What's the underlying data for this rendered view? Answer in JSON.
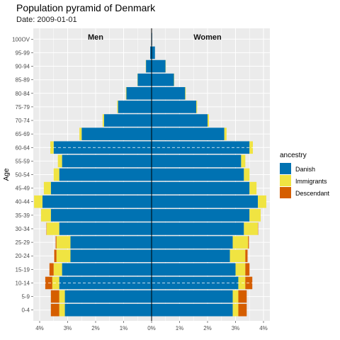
{
  "chart_data": {
    "type": "bar",
    "orientation": "horizontal-pyramid",
    "title": "Population pyramid of Denmark",
    "subtitle": "Date: 2009-01-01",
    "ylabel": "Age",
    "xlabel": "",
    "group_labels": {
      "left": "Men",
      "right": "Women"
    },
    "categories": [
      "0-4",
      "5-9",
      "10-14",
      "15-19",
      "20-24",
      "25-29",
      "30-34",
      "35-39",
      "40-44",
      "45-49",
      "50-54",
      "55-59",
      "60-64",
      "65-69",
      "70-74",
      "75-79",
      "80-84",
      "85-89",
      "90-94",
      "95-99",
      "100OV"
    ],
    "x_ticks": [
      "4%",
      "3%",
      "2%",
      "1%",
      "0%",
      "1%",
      "2%",
      "3%",
      "4%"
    ],
    "xlim": [
      -4,
      4
    ],
    "legend": {
      "title": "ancestry",
      "position": "right"
    },
    "series": [
      {
        "name": "Danish",
        "color": "#0072B2",
        "men": [
          3.1,
          3.1,
          3.3,
          3.2,
          2.9,
          2.9,
          3.3,
          3.6,
          3.9,
          3.6,
          3.3,
          3.2,
          3.5,
          2.5,
          1.7,
          1.2,
          0.9,
          0.5,
          0.2,
          0.05,
          0.01
        ],
        "women": [
          2.9,
          2.9,
          3.1,
          3.0,
          2.8,
          2.9,
          3.3,
          3.5,
          3.8,
          3.5,
          3.3,
          3.2,
          3.5,
          2.6,
          2.0,
          1.6,
          1.2,
          0.8,
          0.5,
          0.12,
          0.02
        ]
      },
      {
        "name": "Immigrants",
        "color": "#F0E442",
        "men": [
          0.2,
          0.2,
          0.25,
          0.3,
          0.5,
          0.5,
          0.45,
          0.35,
          0.3,
          0.25,
          0.2,
          0.15,
          0.12,
          0.08,
          0.05,
          0.03,
          0.02,
          0.01,
          0.01,
          0,
          0
        ],
        "women": [
          0.2,
          0.2,
          0.25,
          0.35,
          0.55,
          0.55,
          0.5,
          0.4,
          0.3,
          0.25,
          0.2,
          0.15,
          0.12,
          0.08,
          0.05,
          0.03,
          0.02,
          0.01,
          0.01,
          0,
          0
        ]
      },
      {
        "name": "Descendant",
        "color": "#D55E00",
        "men": [
          0.3,
          0.3,
          0.25,
          0.15,
          0.08,
          0.03,
          0.01,
          0,
          0,
          0,
          0,
          0,
          0,
          0,
          0,
          0,
          0,
          0,
          0,
          0,
          0
        ],
        "women": [
          0.3,
          0.3,
          0.25,
          0.15,
          0.08,
          0.03,
          0.01,
          0,
          0,
          0,
          0,
          0,
          0,
          0,
          0,
          0,
          0,
          0,
          0,
          0,
          0
        ]
      }
    ],
    "reference_lines_at": [
      "60-64",
      "10-14"
    ],
    "grid": true
  }
}
